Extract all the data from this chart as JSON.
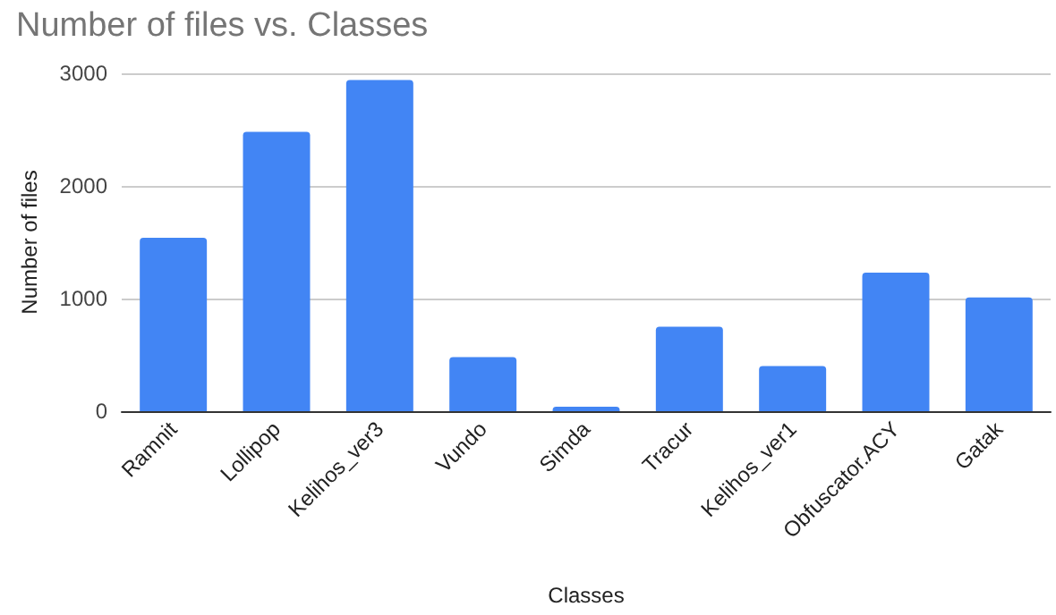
{
  "chart_data": {
    "type": "bar",
    "title": "Number of files vs. Classes",
    "xlabel": "Classes",
    "ylabel": "Number of files",
    "categories": [
      "Ramnit",
      "Lollipop",
      "Kelihos_ver3",
      "Vundo",
      "Simda",
      "Tracur",
      "Kelihos_ver1",
      "Obfuscator.ACY",
      "Gatak"
    ],
    "values": [
      1540,
      2480,
      2940,
      480,
      40,
      750,
      400,
      1230,
      1010
    ],
    "color": "#4285f4",
    "ylim": [
      0,
      3000
    ],
    "yticks": [
      0,
      1000,
      2000,
      3000
    ],
    "grid": "y"
  }
}
